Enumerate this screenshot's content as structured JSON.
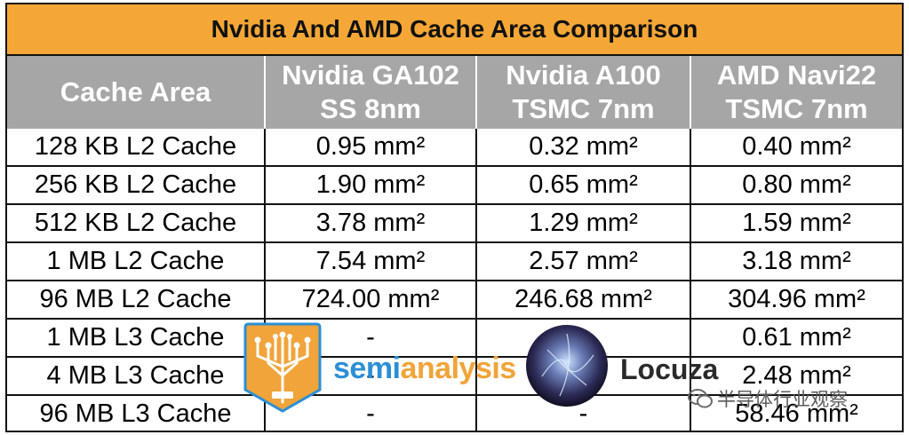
{
  "chart_data": {
    "type": "table",
    "title": "Nvidia And AMD Cache Area Comparison",
    "columns": [
      {
        "lines": [
          "Cache Area"
        ]
      },
      {
        "lines": [
          "Nvidia GA102",
          "SS 8nm"
        ]
      },
      {
        "lines": [
          "Nvidia A100",
          "TSMC 7nm"
        ]
      },
      {
        "lines": [
          "AMD Navi22",
          "TSMC 7nm"
        ]
      }
    ],
    "rows": [
      [
        "128 KB L2 Cache",
        "0.95 mm²",
        "0.32 mm²",
        "0.40 mm²"
      ],
      [
        "256 KB L2 Cache",
        "1.90 mm²",
        "0.65 mm²",
        "0.80 mm²"
      ],
      [
        "512 KB L2 Cache",
        "3.78 mm²",
        "1.29 mm²",
        "1.59 mm²"
      ],
      [
        "1 MB L2 Cache",
        "7.54 mm²",
        "2.57 mm²",
        "3.18 mm²"
      ],
      [
        "96 MB L2 Cache",
        "724.00 mm²",
        "246.68 mm²",
        "304.96 mm²"
      ],
      [
        "1 MB L3 Cache",
        "-",
        "-",
        "0.61 mm²"
      ],
      [
        "4 MB L3 Cache",
        "-",
        "-",
        "2.48 mm²"
      ],
      [
        "96 MB L3 Cache",
        "-",
        "-",
        "58.46 mm²"
      ]
    ]
  },
  "colors": {
    "title_bg": "#f4a736",
    "header_bg": "#a6a6a6",
    "header_text": "#ffffff",
    "border": "#111111"
  },
  "watermarks": {
    "semianalysis": {
      "prefix": "semi",
      "suffix": "analysis",
      "badge_icon": "circuit-tree-icon"
    },
    "locuza": {
      "text": "Locuza",
      "orb_icon": "nebula-orb-icon"
    },
    "wechat": {
      "text": "半导体行业观察",
      "icon": "wechat-icon"
    }
  }
}
